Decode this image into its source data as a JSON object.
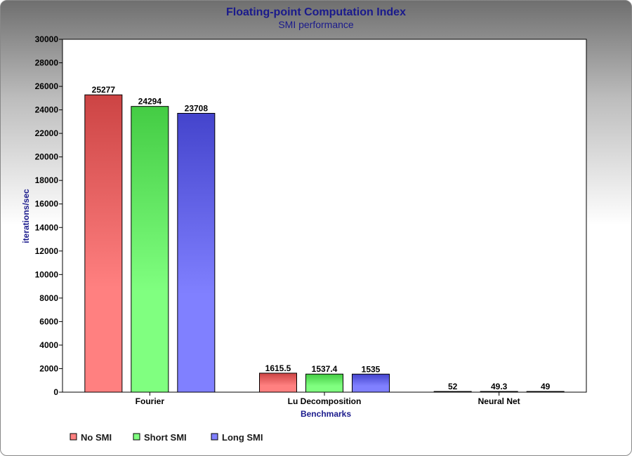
{
  "chart_data": {
    "type": "bar",
    "title": "Floating-point Computation Index",
    "subtitle": "SMI performance",
    "xlabel": "Benchmarks",
    "ylabel": "iterations/sec",
    "ylim": [
      0,
      30000
    ],
    "yticks": [
      0,
      2000,
      4000,
      6000,
      8000,
      10000,
      12000,
      14000,
      16000,
      18000,
      20000,
      22000,
      24000,
      26000,
      28000,
      30000
    ],
    "categories": [
      "Fourier",
      "Lu Decomposition",
      "Neural Net"
    ],
    "series": [
      {
        "name": "No SMI",
        "values": [
          25277,
          1615.5,
          52
        ],
        "labels": [
          "25277",
          "1615.5",
          "52"
        ],
        "color_top": "#cc4444",
        "color_bottom": "#ff8080"
      },
      {
        "name": "Short SMI",
        "values": [
          24294,
          1537.4,
          49.3
        ],
        "labels": [
          "24294",
          "1537.4",
          "49.3"
        ],
        "color_top": "#44cc44",
        "color_bottom": "#80ff80"
      },
      {
        "name": "Long SMI",
        "values": [
          23708,
          1535,
          49
        ],
        "labels": [
          "23708",
          "1535",
          "49"
        ],
        "color_top": "#4444cc",
        "color_bottom": "#8080ff"
      }
    ],
    "grid": false,
    "legend_position": "bottom-left"
  }
}
